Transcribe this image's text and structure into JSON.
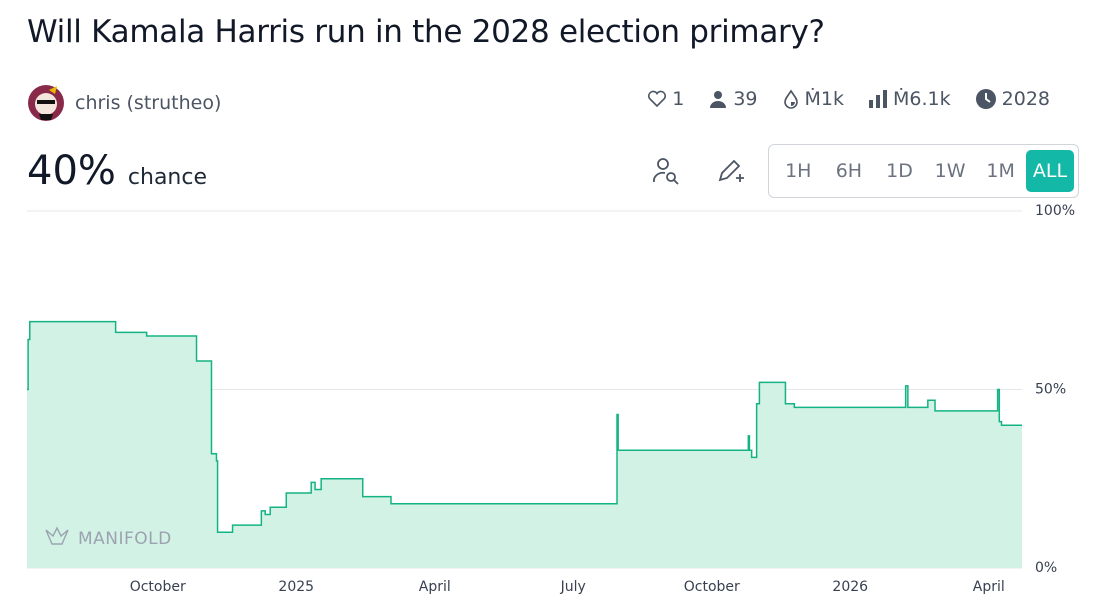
{
  "header": {
    "title": "Will Kamala Harris run in the 2028 election primary?",
    "author": "chris (strutheo)",
    "stats": {
      "likes": "1",
      "traders": "39",
      "liquidity": "Ṁ1k",
      "volume": "Ṁ6.1k",
      "close": "2028"
    }
  },
  "probability": {
    "value": "40%",
    "label": "chance"
  },
  "time_ranges": [
    "1H",
    "6H",
    "1D",
    "1W",
    "1M",
    "ALL"
  ],
  "chart_data": {
    "type": "line",
    "step": "after",
    "watermark": "MANIFOLD",
    "color": "#14b383",
    "fill_color": "#d3f2e6",
    "grid": true,
    "x": [
      2024.514,
      2024.516,
      2024.519,
      2024.674,
      2024.73,
      2024.82,
      2024.847,
      2024.856,
      2024.858,
      2024.885,
      2024.937,
      2024.944,
      2024.953,
      2024.982,
      2025.027,
      2025.034,
      2025.045,
      2025.12,
      2025.171,
      2025.579,
      2025.581,
      2025.816,
      2025.818,
      2025.822,
      2025.831,
      2025.836,
      2025.883,
      2025.899,
      2026.1,
      2026.104,
      2026.14,
      2026.153,
      2026.266,
      2026.269,
      2026.273,
      2026.31
    ],
    "values": [
      50,
      64,
      69,
      66,
      65,
      58,
      32,
      30,
      10,
      12,
      16,
      15,
      17,
      21,
      24,
      22,
      25,
      20,
      18,
      43,
      33,
      37,
      33,
      31,
      46,
      52,
      46,
      45,
      51,
      45,
      47,
      44,
      50,
      41,
      40,
      40
    ],
    "xlim": [
      2024.514,
      2026.31
    ],
    "xticks": [
      {
        "value": 2024.75,
        "label": "October"
      },
      2025,
      {
        "value": 2025.25,
        "label": "April"
      },
      {
        "value": 2025.5,
        "label": "July"
      },
      {
        "value": 2025.75,
        "label": "October"
      },
      2026,
      {
        "value": 2026.25,
        "label": "April"
      }
    ],
    "ylim": [
      0,
      100
    ],
    "yticks": [
      {
        "value": 0,
        "label": "0%"
      },
      {
        "value": 50,
        "label": "50%"
      },
      {
        "value": 100,
        "label": "100%"
      }
    ]
  }
}
